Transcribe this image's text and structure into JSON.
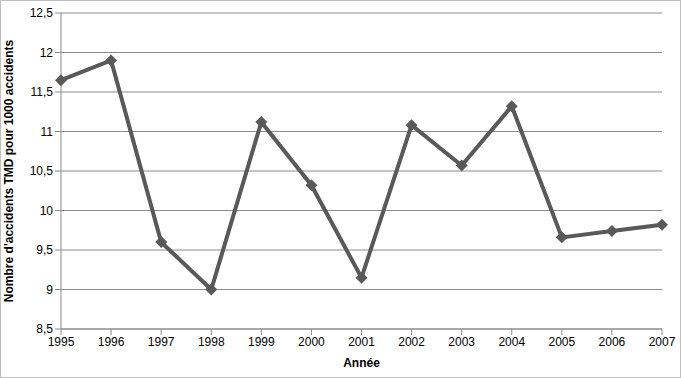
{
  "chart_data": {
    "type": "line",
    "x_label": "Année",
    "y_label": "Nombre d'accidents TMD pour 1000 accidents",
    "categories": [
      "1995",
      "1996",
      "1997",
      "1998",
      "1999",
      "2000",
      "2001",
      "2002",
      "2003",
      "2004",
      "2005",
      "2006",
      "2007"
    ],
    "values": [
      11.65,
      11.9,
      9.6,
      9.0,
      11.12,
      10.32,
      9.15,
      11.08,
      10.57,
      11.32,
      9.66,
      9.74,
      9.82
    ],
    "color": "#595959",
    "marker": "diamond",
    "ylim": [
      8.5,
      12.5
    ],
    "yticks": [
      {
        "value": 8.5,
        "label": "8,5"
      },
      9,
      {
        "value": 9.5,
        "label": "9,5"
      },
      10,
      {
        "value": 10.5,
        "label": "10,5"
      },
      11,
      {
        "value": 11.5,
        "label": "11,5"
      },
      12,
      {
        "value": 12.5,
        "label": "12,5"
      }
    ],
    "grid": true
  }
}
